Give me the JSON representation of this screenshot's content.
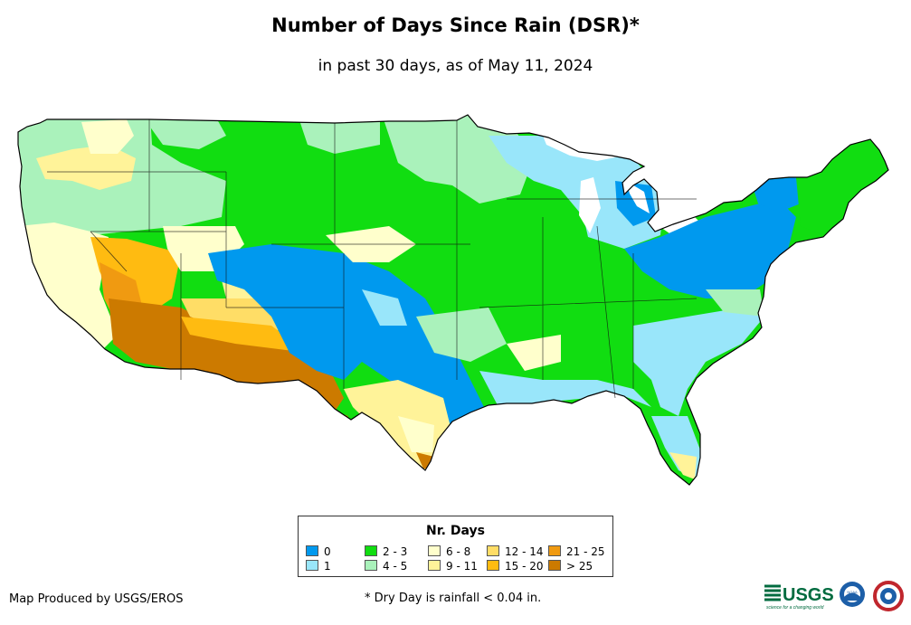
{
  "title": "Number of Days Since Rain (DSR)*",
  "subtitle": "in past 30 days, as of May 11, 2024",
  "legend": {
    "title": "Nr. Days",
    "items": [
      {
        "label": "0",
        "color": "#0099ee"
      },
      {
        "label": "1",
        "color": "#99e6fa"
      },
      {
        "label": "2 - 3",
        "color": "#11dd11"
      },
      {
        "label": "4 - 5",
        "color": "#aaf2bb"
      },
      {
        "label": "6 - 8",
        "color": "#ffffcc"
      },
      {
        "label": "9 - 11",
        "color": "#fff399"
      },
      {
        "label": "12 - 14",
        "color": "#ffdd66"
      },
      {
        "label": "15 - 20",
        "color": "#ffbb11"
      },
      {
        "label": "21 - 25",
        "color": "#f09a11"
      },
      {
        "label": "> 25",
        "color": "#cc7a00"
      }
    ]
  },
  "credit": "Map Produced by USGS/EROS",
  "footnote": "* Dry Day is rainfall < 0.04 in.",
  "logos": {
    "usgs": "USGS",
    "usgs_tagline": "science for a changing world",
    "noaa": "NOAA"
  }
}
